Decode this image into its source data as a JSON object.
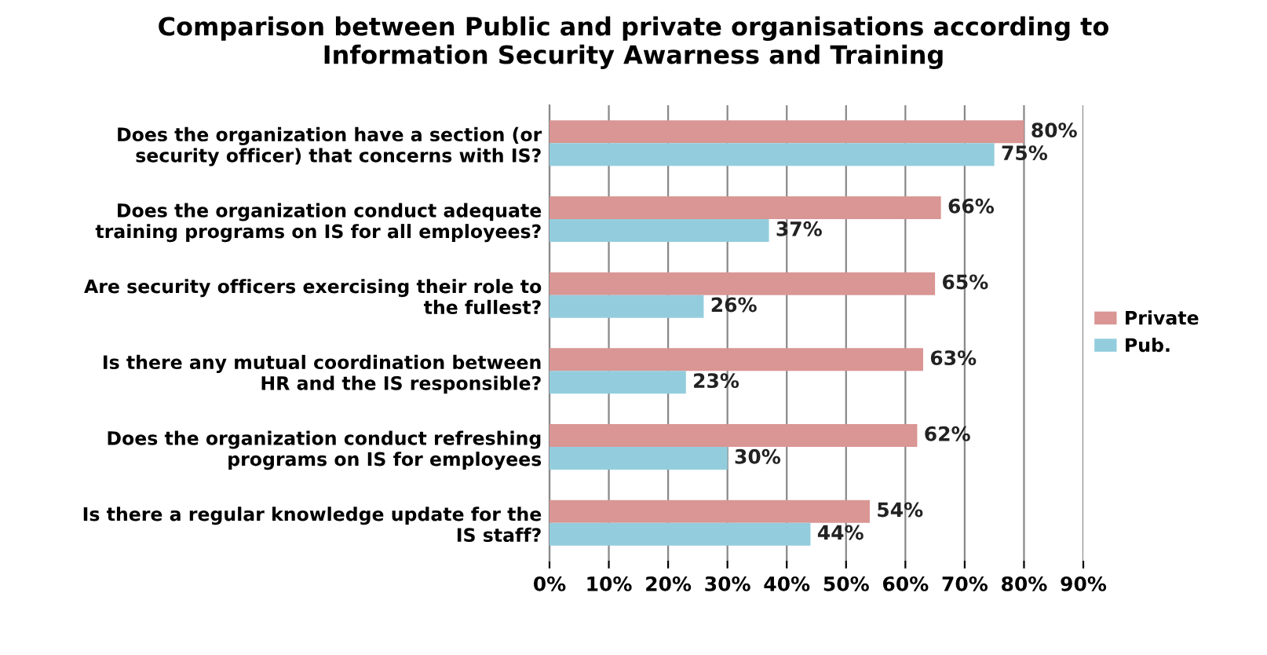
{
  "chart_data": {
    "type": "bar",
    "orientation": "horizontal",
    "title": "Comparison between Public and private organisations according to\nInformation Security Awarness and Training",
    "categories": [
      "Does the organization have a section (or\nsecurity officer) that concerns with IS?",
      "Does the organization conduct adequate\ntraining programs on IS for all employees?",
      "Are security officers exercising their role to\nthe fullest?",
      "Is there any mutual coordination between\nHR and the IS responsible?",
      "Does the organization conduct refreshing\nprograms on IS for employees",
      "Is there a regular knowledge update for the\nIS staff?"
    ],
    "series": [
      {
        "name": "Private",
        "color": "#d99694",
        "values": [
          80,
          66,
          65,
          63,
          62,
          54
        ],
        "value_labels": [
          "80%",
          "66%",
          "65%",
          "63%",
          "62%",
          "54%"
        ]
      },
      {
        "name": "Pub.",
        "color": "#93cddd",
        "values": [
          75,
          37,
          26,
          23,
          30,
          44
        ],
        "value_labels": [
          "75%",
          "37%",
          "26%",
          "23%",
          "30%",
          "44%"
        ]
      }
    ],
    "xlim": [
      0,
      90
    ],
    "xticks": [
      {
        "value": 0,
        "label": "0%"
      },
      {
        "value": 10,
        "label": "10%"
      },
      {
        "value": 20,
        "label": "20%"
      },
      {
        "value": 30,
        "label": "30%"
      },
      {
        "value": 40,
        "label": "40%"
      },
      {
        "value": 50,
        "label": "50%"
      },
      {
        "value": 60,
        "label": "60%"
      },
      {
        "value": 70,
        "label": "70%"
      },
      {
        "value": 80,
        "label": "80%"
      },
      {
        "value": 90,
        "label": "90%"
      }
    ],
    "grid": "x",
    "legend": "right"
  }
}
